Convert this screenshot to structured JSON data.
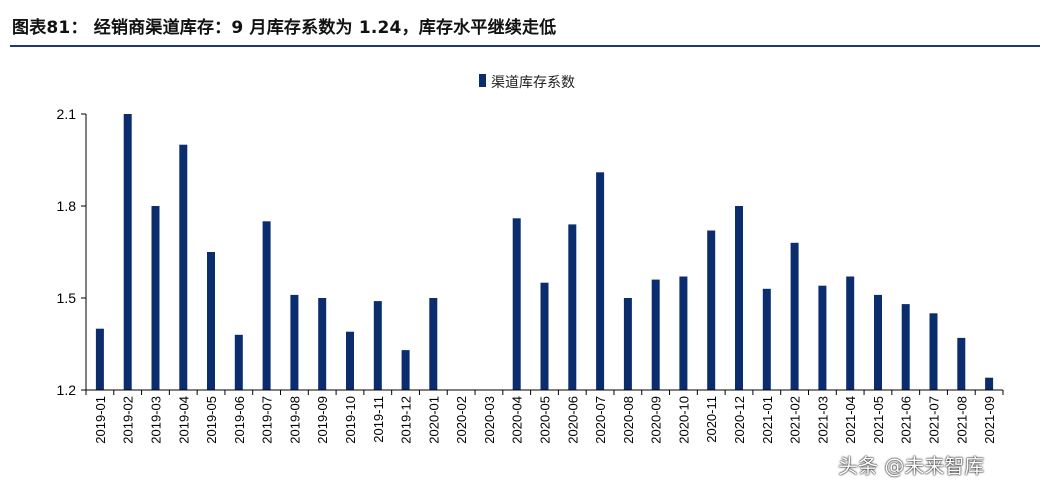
{
  "header": {
    "title": "图表81：  经销商渠道库存：9 月库存系数为 1.24，库存水平继续走低"
  },
  "watermark": "头条 @未来智库",
  "chart_data": {
    "type": "bar",
    "title": "",
    "xlabel": "",
    "ylabel": "",
    "ylim": [
      1.2,
      2.1
    ],
    "yticks": [
      1.2,
      1.5,
      1.8,
      2.1
    ],
    "ytick_labels": [
      "1.2",
      "1.5",
      "1.8",
      "2.1"
    ],
    "grid": false,
    "legend": "top-center",
    "color": "#0b2d6e",
    "categories": [
      "2019-01",
      "2019-02",
      "2019-03",
      "2019-04",
      "2019-05",
      "2019-06",
      "2019-07",
      "2019-08",
      "2019-09",
      "2019-10",
      "2019-11",
      "2019-12",
      "2020-01",
      "2020-02",
      "2020-03",
      "2020-04",
      "2020-05",
      "2020-06",
      "2020-07",
      "2020-08",
      "2020-09",
      "2020-10",
      "2020-11",
      "2020-12",
      "2021-01",
      "2021-02",
      "2021-03",
      "2021-04",
      "2021-05",
      "2021-06",
      "2021-07",
      "2021-08",
      "2021-09"
    ],
    "series": [
      {
        "name": "渠道库存系数",
        "values": [
          1.4,
          2.1,
          1.8,
          2.0,
          1.65,
          1.38,
          1.75,
          1.51,
          1.5,
          1.39,
          1.49,
          1.33,
          1.5,
          null,
          null,
          1.76,
          1.55,
          1.74,
          1.91,
          1.5,
          1.56,
          1.57,
          1.72,
          1.8,
          1.53,
          1.68,
          1.54,
          1.57,
          1.51,
          1.48,
          1.45,
          1.37,
          1.24
        ]
      }
    ]
  }
}
